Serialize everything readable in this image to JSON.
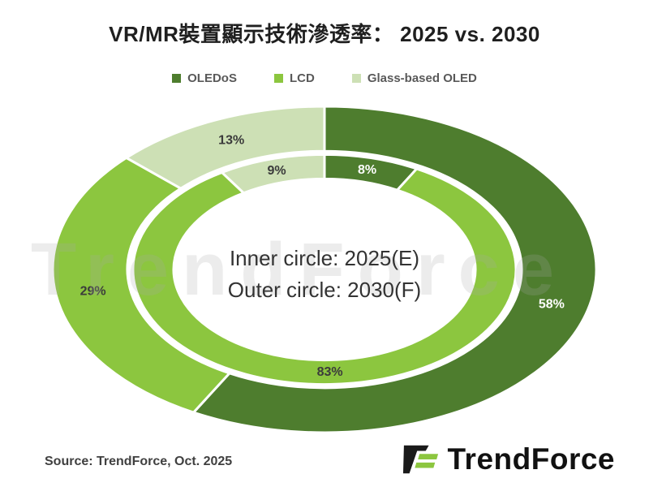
{
  "title": "VR/MR裝置顯示技術滲透率： 2025 vs. 2030",
  "legend": {
    "items": [
      {
        "label": "OLEDoS",
        "color": "#4E7D2E"
      },
      {
        "label": "LCD",
        "color": "#8CC63F"
      },
      {
        "label": "Glass-based OLED",
        "color": "#CDE0B5"
      }
    ]
  },
  "center_label": {
    "line1": "Inner circle: 2025(E)",
    "line2": "Outer circle: 2030(F)"
  },
  "footer": {
    "source": "Source: TrendForce, Oct. 2025",
    "brand": "TrendForce"
  },
  "watermark_text": "TrendForce",
  "chart_data": {
    "type": "pie",
    "subtype": "nested_donut",
    "title": "VR/MR裝置顯示技術滲透率： 2025 vs. 2030",
    "categories": [
      "OLEDoS",
      "LCD",
      "Glass-based OLED"
    ],
    "series": [
      {
        "name": "2025(E)",
        "ring": "inner",
        "values": [
          8,
          83,
          9
        ]
      },
      {
        "name": "2030(F)",
        "ring": "outer",
        "values": [
          58,
          29,
          13
        ]
      }
    ],
    "colors": [
      "#4E7D2E",
      "#8CC63F",
      "#CDE0B5"
    ],
    "label_colors": [
      "#FFFFFF",
      "#3B3B3B",
      "#3B3B3B"
    ],
    "unit": "%",
    "start_angle_deg": 0,
    "direction": "clockwise",
    "legend_position": "top",
    "annotations": [
      "Inner circle: 2025(E)",
      "Outer circle: 2030(F)"
    ]
  }
}
